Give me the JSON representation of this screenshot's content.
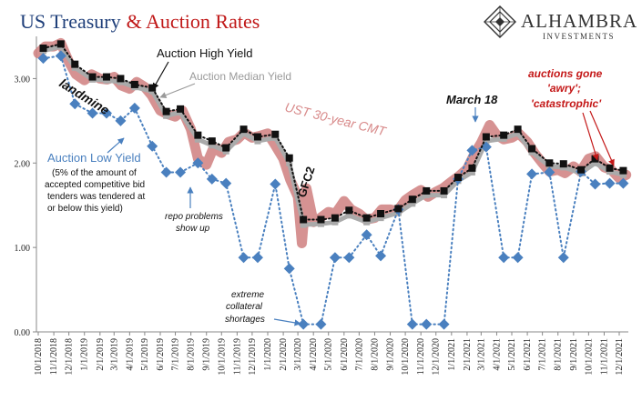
{
  "chart_data": {
    "type": "line",
    "title_part1": "US Treasury",
    "title_part2": "& Auction Rates",
    "colors": {
      "title_blue": "#1f3f7a",
      "title_red": "#c01818",
      "cmt": "#cf7f7f",
      "median": "#aaaaaa",
      "high": "#111111",
      "low": "#4a80bf",
      "annotation_red": "#c41818"
    },
    "ylim": [
      0,
      3.5
    ],
    "yticks": [
      "0.00",
      "1.00",
      "2.00",
      "3.00"
    ],
    "ytick_values": [
      0,
      1,
      2,
      3
    ],
    "x_start": "2018-10-01",
    "x_end": "2021-12-01",
    "xtick_labels": [
      "10/1/2018",
      "11/1/2018",
      "12/1/2018",
      "1/1/2019",
      "2/1/2019",
      "3/1/2019",
      "4/1/2019",
      "5/1/2019",
      "6/1/2019",
      "7/1/2019",
      "8/1/2019",
      "9/1/2019",
      "10/1/2019",
      "11/1/2019",
      "12/1/2019",
      "1/1/2020",
      "2/1/2020",
      "3/1/2020",
      "4/1/2020",
      "5/1/2020",
      "6/1/2020",
      "7/1/2020",
      "8/1/2020",
      "9/1/2020",
      "10/1/2020",
      "11/1/2020",
      "12/1/2020",
      "1/1/2021",
      "2/1/2021",
      "3/1/2021",
      "4/1/2021",
      "5/1/2021",
      "6/1/2021",
      "7/1/2021",
      "8/1/2021",
      "9/1/2021",
      "10/1/2021",
      "11/1/2021",
      "12/1/2021"
    ],
    "series": [
      {
        "name": "Auction High Yield",
        "x": [
          "2018-10-11",
          "2018-11-15",
          "2018-12-13",
          "2019-01-17",
          "2019-02-14",
          "2019-03-14",
          "2019-04-11",
          "2019-05-16",
          "2019-06-13",
          "2019-07-11",
          "2019-08-15",
          "2019-09-12",
          "2019-10-10",
          "2019-11-14",
          "2019-12-12",
          "2020-01-16",
          "2020-02-13",
          "2020-03-12",
          "2020-04-16",
          "2020-05-14",
          "2020-06-11",
          "2020-07-16",
          "2020-08-13",
          "2020-09-17",
          "2020-10-15",
          "2020-11-12",
          "2020-12-17",
          "2021-01-14",
          "2021-02-11",
          "2021-03-11",
          "2021-04-15",
          "2021-05-13",
          "2021-06-10",
          "2021-07-15",
          "2021-08-12",
          "2021-09-16",
          "2021-10-14",
          "2021-11-12",
          "2021-12-09"
        ],
        "y": [
          3.36,
          3.41,
          3.17,
          3.02,
          3.02,
          3.0,
          2.93,
          2.89,
          2.61,
          2.64,
          2.33,
          2.26,
          2.18,
          2.4,
          2.31,
          2.34,
          2.06,
          1.33,
          1.33,
          1.35,
          1.44,
          1.35,
          1.4,
          1.46,
          1.57,
          1.67,
          1.67,
          1.83,
          1.94,
          2.31,
          2.33,
          2.4,
          2.17,
          2.0,
          1.99,
          1.92,
          2.05,
          1.94,
          1.91
        ]
      },
      {
        "name": "Auction Low Yield",
        "x": [
          "2018-10-11",
          "2018-11-15",
          "2018-12-13",
          "2019-01-17",
          "2019-02-14",
          "2019-03-14",
          "2019-04-11",
          "2019-05-16",
          "2019-06-13",
          "2019-07-11",
          "2019-08-15",
          "2019-09-12",
          "2019-10-10",
          "2019-11-14",
          "2019-12-12",
          "2020-01-16",
          "2020-02-13",
          "2020-03-12",
          "2020-04-16",
          "2020-05-14",
          "2020-06-11",
          "2020-07-16",
          "2020-08-13",
          "2020-09-17",
          "2020-10-15",
          "2020-11-12",
          "2020-12-17",
          "2021-01-14",
          "2021-02-11",
          "2021-03-11",
          "2021-04-15",
          "2021-05-13",
          "2021-06-10",
          "2021-07-15",
          "2021-08-12",
          "2021-09-16",
          "2021-10-14",
          "2021-11-12",
          "2021-12-09"
        ],
        "y": [
          3.24,
          3.27,
          2.7,
          2.59,
          2.59,
          2.5,
          2.65,
          2.2,
          1.89,
          1.89,
          2.0,
          1.81,
          1.76,
          0.88,
          0.88,
          1.75,
          0.75,
          0.09,
          0.09,
          0.88,
          0.88,
          1.15,
          0.9,
          1.45,
          0.09,
          0.09,
          0.09,
          1.81,
          2.15,
          2.19,
          0.88,
          0.88,
          1.87,
          1.89,
          0.88,
          1.9,
          1.75,
          1.76,
          1.76
        ]
      },
      {
        "name": "Auction Median Yield",
        "x": [
          "2018-10-11",
          "2018-11-15",
          "2018-12-13",
          "2019-01-17",
          "2019-02-14",
          "2019-03-14",
          "2019-04-11",
          "2019-05-16",
          "2019-06-13",
          "2019-07-11",
          "2019-08-15",
          "2019-09-12",
          "2019-10-10",
          "2019-11-14",
          "2019-12-12",
          "2020-01-16",
          "2020-02-13",
          "2020-03-12",
          "2020-04-16",
          "2020-05-14",
          "2020-06-11",
          "2020-07-16",
          "2020-08-13",
          "2020-09-17",
          "2020-10-15",
          "2020-11-12",
          "2020-12-17",
          "2021-01-14",
          "2021-02-11",
          "2021-03-11",
          "2021-04-15",
          "2021-05-13",
          "2021-06-10",
          "2021-07-15",
          "2021-08-12",
          "2021-09-16",
          "2021-10-14",
          "2021-11-12",
          "2021-12-09"
        ],
        "y": [
          3.33,
          3.38,
          3.13,
          2.99,
          2.98,
          2.96,
          2.9,
          2.85,
          2.56,
          2.6,
          2.28,
          2.21,
          2.14,
          2.35,
          2.26,
          2.3,
          2.0,
          1.27,
          1.28,
          1.3,
          1.38,
          1.3,
          1.35,
          1.41,
          1.52,
          1.62,
          1.62,
          1.79,
          1.89,
          2.26,
          2.29,
          2.35,
          2.13,
          1.96,
          1.95,
          1.88,
          2.0,
          1.9,
          1.86
        ]
      },
      {
        "name": "UST 30-year CMT",
        "x": [
          "2018-10-01",
          "2018-10-15",
          "2018-11-01",
          "2018-11-15",
          "2018-12-01",
          "2018-12-15",
          "2019-01-01",
          "2019-01-15",
          "2019-02-01",
          "2019-02-15",
          "2019-03-01",
          "2019-03-15",
          "2019-04-01",
          "2019-04-15",
          "2019-05-01",
          "2019-05-15",
          "2019-06-01",
          "2019-06-15",
          "2019-07-01",
          "2019-07-15",
          "2019-08-01",
          "2019-08-15",
          "2019-09-01",
          "2019-09-15",
          "2019-10-01",
          "2019-10-15",
          "2019-11-01",
          "2019-11-15",
          "2019-12-01",
          "2019-12-15",
          "2020-01-01",
          "2020-01-15",
          "2020-02-01",
          "2020-02-15",
          "2020-03-01",
          "2020-03-09",
          "2020-03-18",
          "2020-04-01",
          "2020-04-15",
          "2020-05-01",
          "2020-05-15",
          "2020-06-01",
          "2020-06-15",
          "2020-07-01",
          "2020-07-15",
          "2020-08-01",
          "2020-08-15",
          "2020-09-01",
          "2020-09-15",
          "2020-10-01",
          "2020-10-15",
          "2020-11-01",
          "2020-11-15",
          "2020-12-01",
          "2020-12-15",
          "2021-01-01",
          "2021-01-15",
          "2021-02-01",
          "2021-02-15",
          "2021-03-01",
          "2021-03-18",
          "2021-04-01",
          "2021-04-15",
          "2021-05-01",
          "2021-05-15",
          "2021-06-01",
          "2021-06-15",
          "2021-07-01",
          "2021-07-15",
          "2021-08-01",
          "2021-08-15",
          "2021-09-01",
          "2021-09-15",
          "2021-10-01",
          "2021-10-15",
          "2021-11-01",
          "2021-11-15",
          "2021-12-01",
          "2021-12-15"
        ],
        "y": [
          3.3,
          3.38,
          3.38,
          3.42,
          3.2,
          3.05,
          2.98,
          3.05,
          3.0,
          2.99,
          3.02,
          2.92,
          2.88,
          2.96,
          2.9,
          2.8,
          2.62,
          2.58,
          2.55,
          2.62,
          2.4,
          2.05,
          1.98,
          2.18,
          2.12,
          2.25,
          2.28,
          2.36,
          2.3,
          2.32,
          2.35,
          2.22,
          2.05,
          1.8,
          1.6,
          1.05,
          1.7,
          1.3,
          1.35,
          1.42,
          1.4,
          1.55,
          1.45,
          1.4,
          1.33,
          1.35,
          1.45,
          1.45,
          1.43,
          1.56,
          1.62,
          1.68,
          1.6,
          1.66,
          1.7,
          1.78,
          1.84,
          1.93,
          2.1,
          2.24,
          2.45,
          2.33,
          2.28,
          2.3,
          2.35,
          2.25,
          2.12,
          2.0,
          1.9,
          1.92,
          1.88,
          1.96,
          1.9,
          2.05,
          2.08,
          1.95,
          1.92,
          1.82,
          1.86
        ]
      }
    ],
    "labels": {
      "high": "Auction High Yield",
      "median": "Auction Median Yield",
      "low_title": "Auction Low Yield",
      "low_note": [
        "(5% of the amount of",
        "accepted competitive bid",
        "tenders was tendered at",
        "or below this yield)"
      ],
      "cmt": "UST 30-year CMT",
      "landmine": "landmine",
      "march18": "March 18",
      "gfc2": "GFC2",
      "repo": [
        "repo problems",
        "show up"
      ],
      "collateral": [
        "extreme",
        "collateral",
        "shortages"
      ],
      "awry": [
        "auctions gone",
        "'awry';",
        "'catastrophic'"
      ]
    }
  },
  "logo": {
    "name": "ALHAMBRA",
    "sub": "INVESTMENTS"
  }
}
